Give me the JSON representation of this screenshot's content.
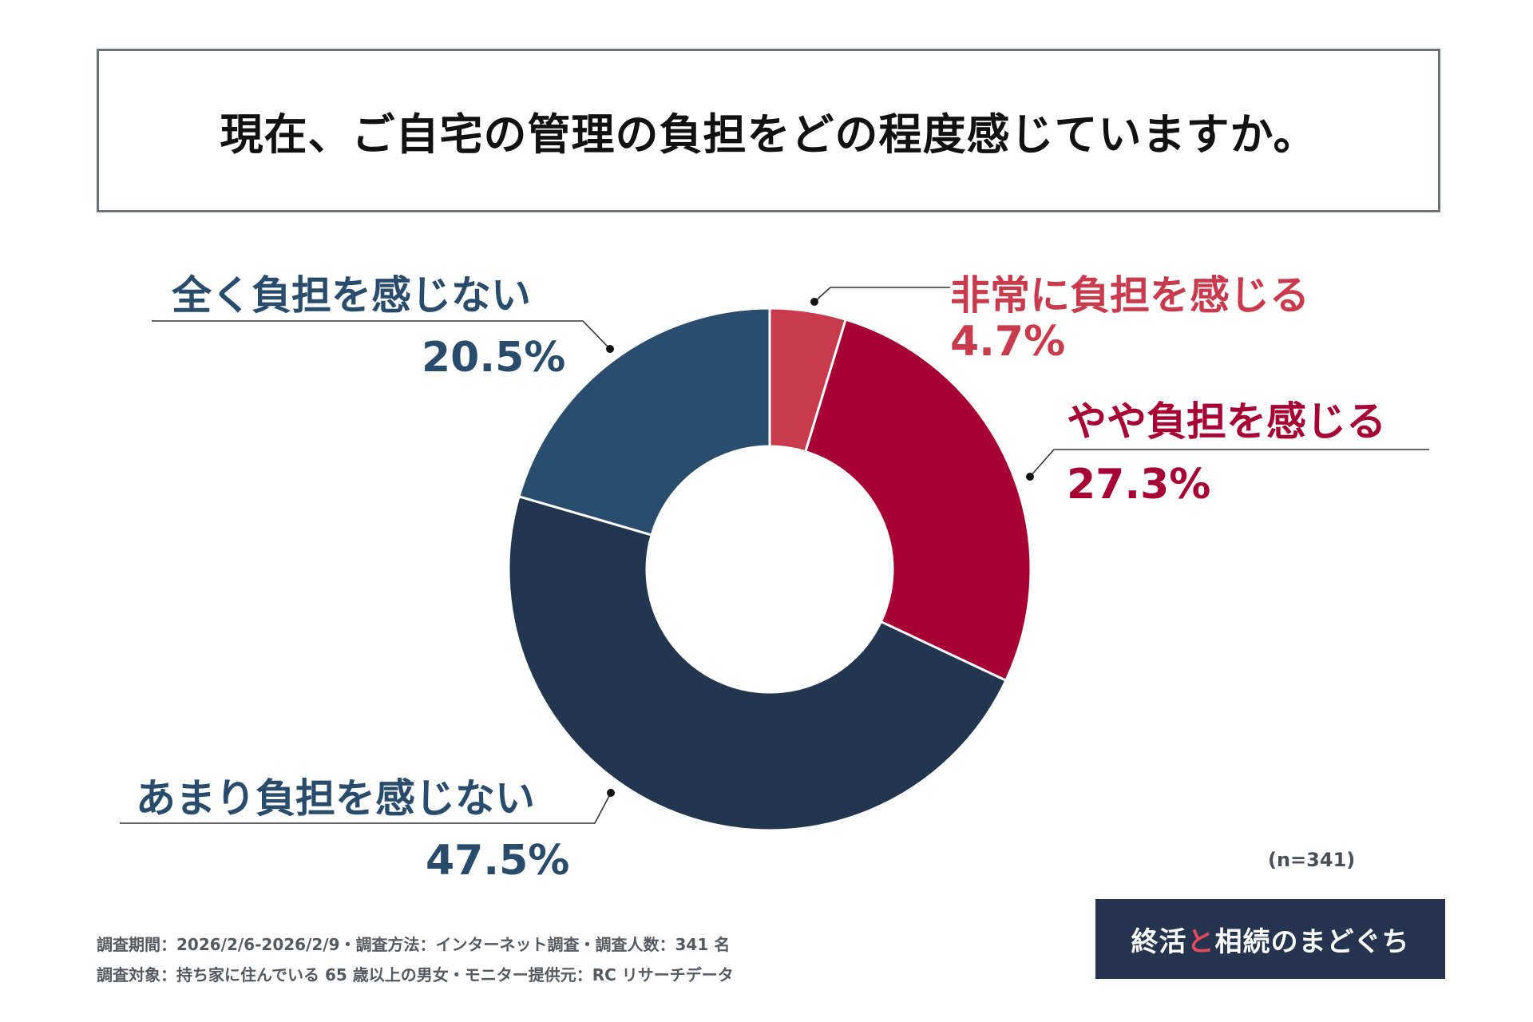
{
  "title": "現在、ご自宅の管理の負担をどの程度感じていますか。",
  "chart_data": {
    "type": "pie",
    "title": "現在、ご自宅の管理の負担をどの程度感じていますか。",
    "sample_size_label": "(n=341)",
    "slices": [
      {
        "label": "非常に負担を感じる",
        "value": 4.7,
        "value_label": "4.7%",
        "color": "#c83a4c",
        "text_color": "#c83a4c"
      },
      {
        "label": "やや負担を感じる",
        "value": 27.3,
        "value_label": "27.3%",
        "color": "#a60034",
        "text_color": "#a60034"
      },
      {
        "label": "あまり負担を感じない",
        "value": 47.5,
        "value_label": "47.5%",
        "color": "#233650",
        "text_color": "#2a4c6c"
      },
      {
        "label": "全く負担を感じない",
        "value": 20.5,
        "value_label": "20.5%",
        "color": "#2a4d6d",
        "text_color": "#2a4c6c"
      }
    ]
  },
  "footnotes": {
    "line1": "調査期間：2026/2/6-2026/2/9・調査方法：インターネット調査・調査人数：341 名",
    "line2": "調査対象：持ち家に住んでいる 65 歳以上の男女・モニター提供元：RC リサーチデータ"
  },
  "logo": {
    "part1": "終活",
    "part2": "と",
    "part3": "相続のまどぐち"
  }
}
